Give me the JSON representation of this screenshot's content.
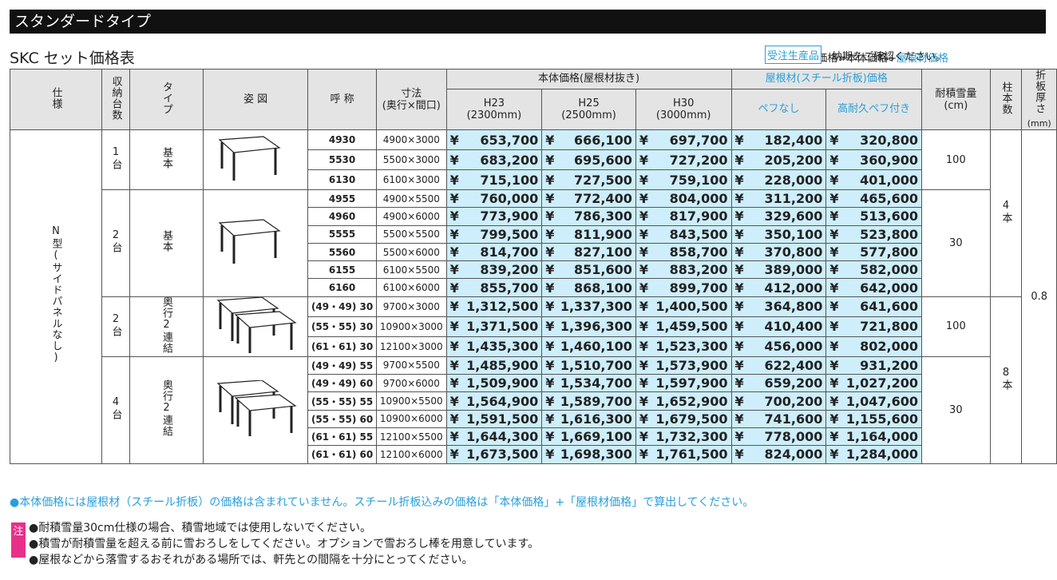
{
  "header": {
    "title": "スタンダードタイプ"
  },
  "subtitle": "SKC セット価格表",
  "formula": {
    "text": "セット価格=本体価格+",
    "highlight": "屋根材価格"
  },
  "badge": "受注生産品",
  "badge_note": "納期をご確認ください。",
  "table": {
    "currency": "¥",
    "columns": {
      "spec": "仕様",
      "count": "収納台数",
      "type": "タイプ",
      "figure": "姿 図",
      "code": "呼 称",
      "size": [
        "寸法",
        "(奥行×間口)"
      ],
      "body": "本体価格(屋根材抜き)",
      "h23": [
        "H23",
        "(2300mm)"
      ],
      "h25": [
        "H25",
        "(2500mm)"
      ],
      "h30": [
        "H30",
        "(3000mm)"
      ],
      "roof": "屋根材(スチール折板)価格",
      "nopef": "ペフなし",
      "pef": "高耐久ペフ付き",
      "snow": [
        "耐積雪量",
        "(cm)"
      ],
      "pillars": "柱本数",
      "thickness": [
        "折板厚さ",
        "(mm)"
      ]
    },
    "spec": "N型(サイドパネルなし)",
    "thickness": "0.8",
    "pillar_groups": [
      {
        "label": "4本",
        "groups": [
          {
            "count": "1台",
            "type": "基本",
            "snow": 100,
            "rows": [
              [
                "4930",
                "4900×3000",
                "653,700",
                "666,100",
                "697,700",
                "182,400",
                "320,800"
              ],
              [
                "5530",
                "5500×3000",
                "683,200",
                "695,600",
                "727,200",
                "205,200",
                "360,900"
              ],
              [
                "6130",
                "6100×3000",
                "715,100",
                "727,500",
                "759,100",
                "228,000",
                "401,000"
              ]
            ]
          },
          {
            "count": "2台",
            "type": "基本",
            "snow": 30,
            "rows": [
              [
                "4955",
                "4900×5500",
                "760,000",
                "772,400",
                "804,000",
                "311,200",
                "465,600"
              ],
              [
                "4960",
                "4900×6000",
                "773,900",
                "786,300",
                "817,900",
                "329,600",
                "513,600"
              ],
              [
                "5555",
                "5500×5500",
                "799,500",
                "811,900",
                "843,500",
                "350,100",
                "523,800"
              ],
              [
                "5560",
                "5500×6000",
                "814,700",
                "827,100",
                "858,700",
                "370,800",
                "577,800"
              ],
              [
                "6155",
                "6100×5500",
                "839,200",
                "851,600",
                "883,200",
                "389,000",
                "582,000"
              ],
              [
                "6160",
                "6100×6000",
                "855,700",
                "868,100",
                "899,700",
                "412,000",
                "642,000"
              ]
            ]
          }
        ]
      },
      {
        "label": "8本",
        "groups": [
          {
            "count": "2台",
            "type": "奥行2連結",
            "snow": 100,
            "rows": [
              [
                "(49・49) 30",
                "9700×3000",
                "1,312,500",
                "1,337,300",
                "1,400,500",
                "364,800",
                "641,600"
              ],
              [
                "(55・55) 30",
                "10900×3000",
                "1,371,500",
                "1,396,300",
                "1,459,500",
                "410,400",
                "721,800"
              ],
              [
                "(61・61) 30",
                "12100×3000",
                "1,435,300",
                "1,460,100",
                "1,523,300",
                "456,000",
                "802,000"
              ]
            ]
          },
          {
            "count": "4台",
            "type": "奥行2連結",
            "snow": 30,
            "rows": [
              [
                "(49・49) 55",
                "9700×5500",
                "1,485,900",
                "1,510,700",
                "1,573,900",
                "622,400",
                "931,200"
              ],
              [
                "(49・49) 60",
                "9700×6000",
                "1,509,900",
                "1,534,700",
                "1,597,900",
                "659,200",
                "1,027,200"
              ],
              [
                "(55・55) 55",
                "10900×5500",
                "1,564,900",
                "1,589,700",
                "1,652,900",
                "700,200",
                "1,047,600"
              ],
              [
                "(55・55) 60",
                "10900×6000",
                "1,591,500",
                "1,616,300",
                "1,679,500",
                "741,600",
                "1,155,600"
              ],
              [
                "(61・61) 55",
                "12100×5500",
                "1,644,300",
                "1,669,100",
                "1,732,300",
                "778,000",
                "1,164,000"
              ],
              [
                "(61・61) 60",
                "12100×6000",
                "1,673,500",
                "1,698,300",
                "1,761,500",
                "824,000",
                "1,284,000"
              ]
            ]
          }
        ]
      }
    ]
  },
  "notes": {
    "info": "●本体価格には屋根材（スチール折板）の価格は含まれていません。スチール折板込みの価格は「本体価格」+「屋根材価格」で算出してください。",
    "caution_label": "注",
    "caution": [
      "●耐積雪量30cm仕様の場合、積雪地域では使用しないでください。",
      "●積雪が耐積雪量を超える前に雪おろしをしてください。オプションで雪おろし棒を用意しています。",
      "●屋根などから落雪するおそれがある場所では、軒先との間隔を十分にとってください。"
    ]
  }
}
